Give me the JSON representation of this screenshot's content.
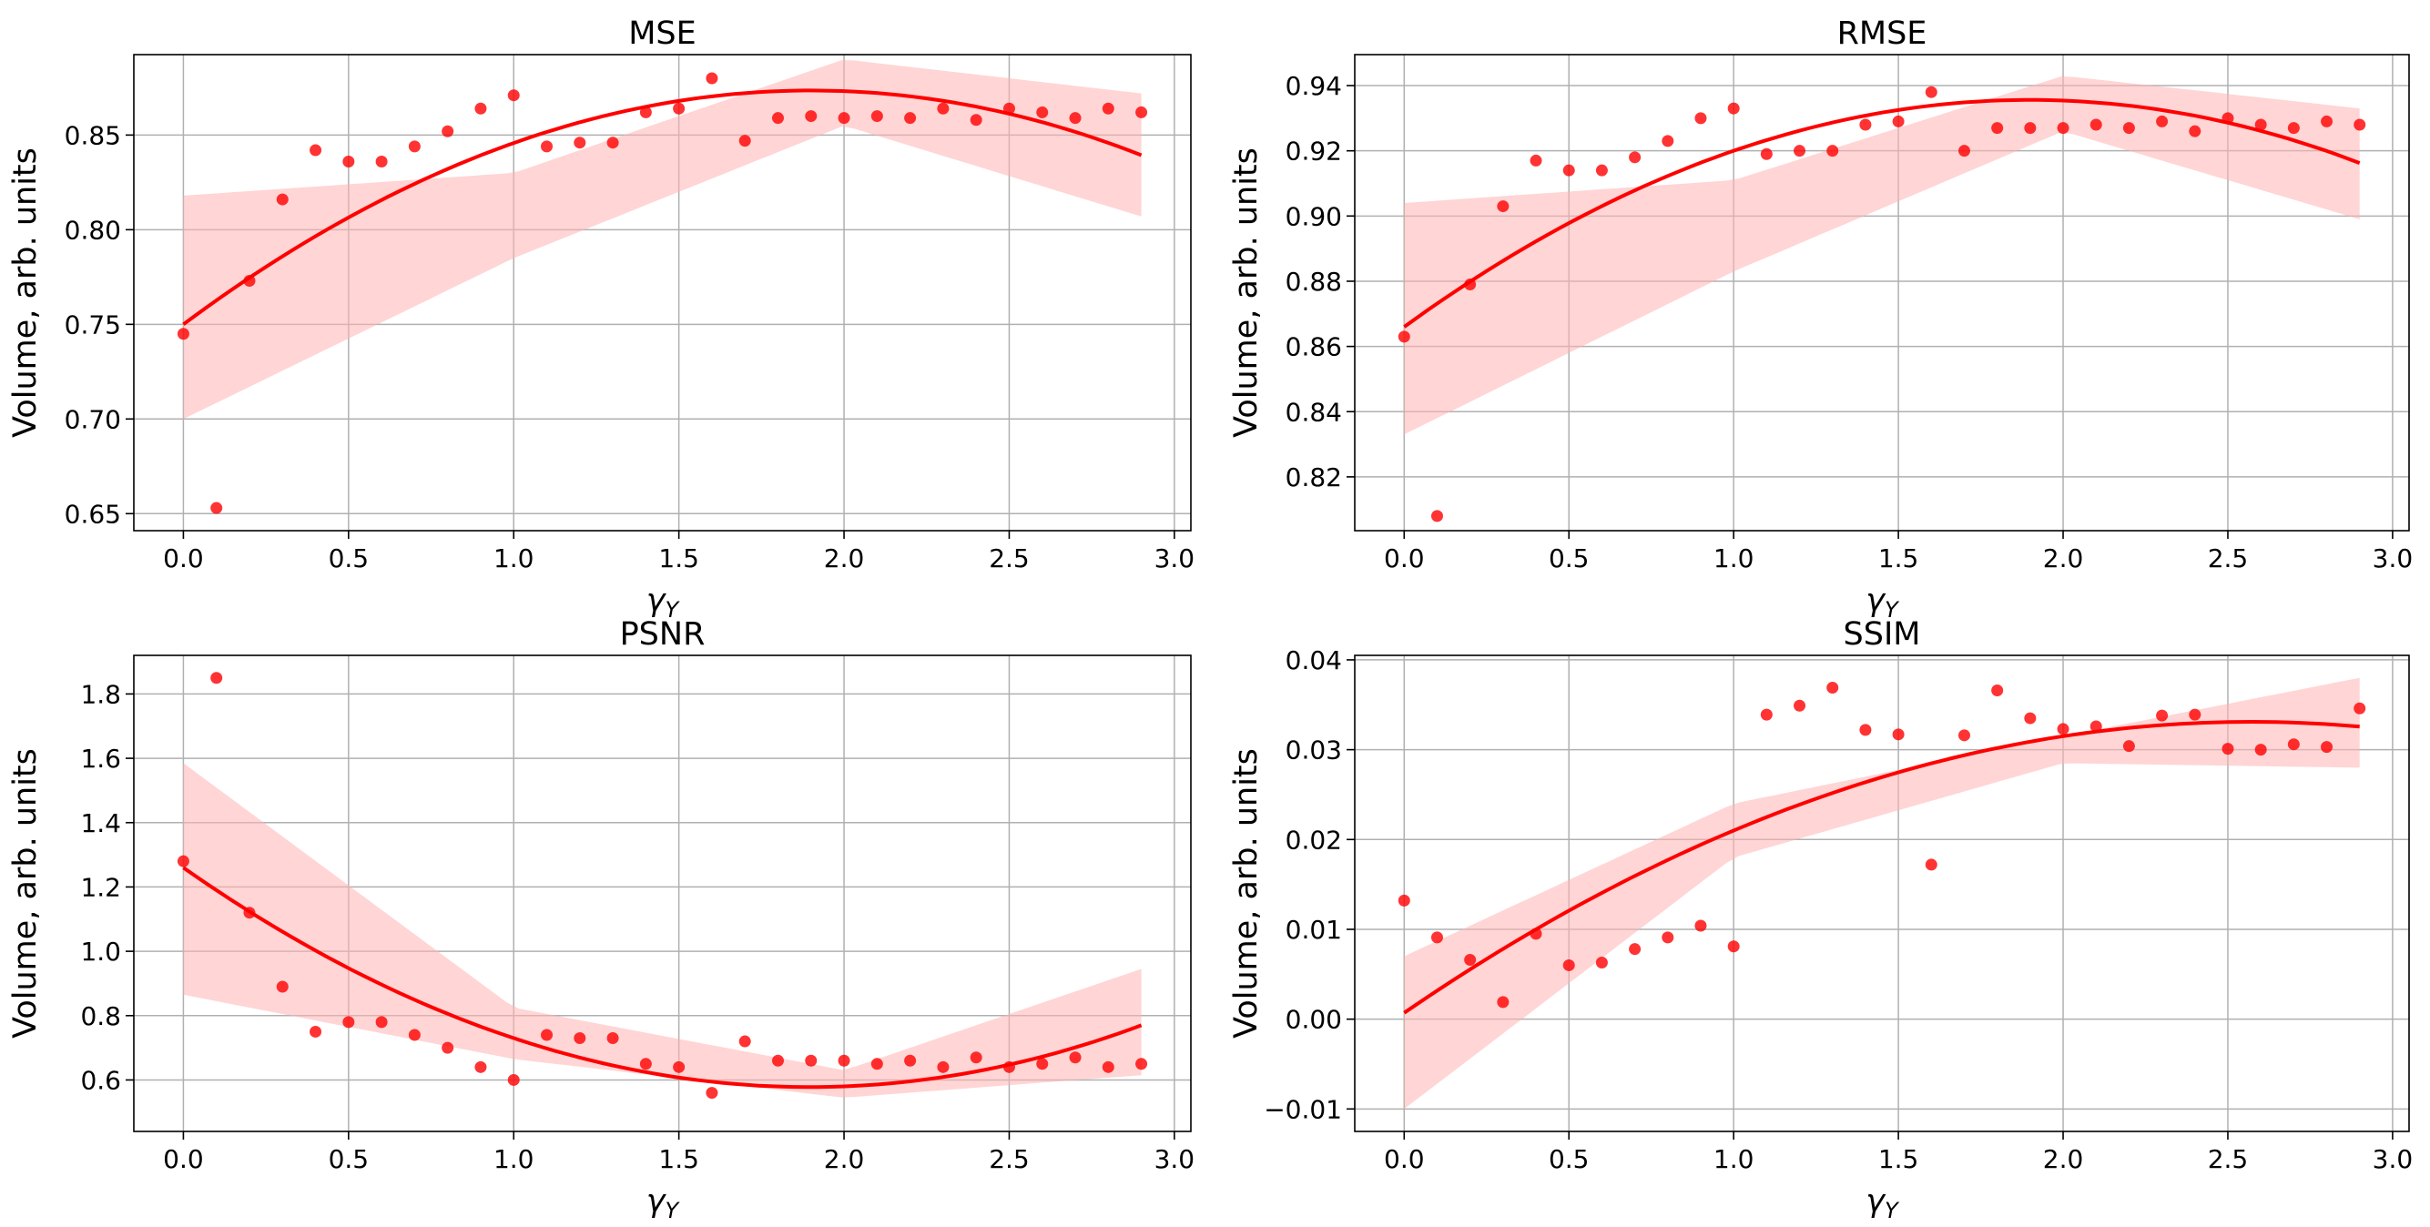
{
  "colors": {
    "accent": "#ff0000",
    "band": "#ffb3b3",
    "grid": "#b0b0b0"
  },
  "chart_data": [
    {
      "type": "scatter",
      "title": "MSE",
      "xlabel": "γ",
      "xlabel_sub": "Y",
      "ylabel": "Volume, arb. units",
      "xlim": [
        -0.15,
        3.05
      ],
      "ylim": [
        0.641,
        0.8925
      ],
      "xticks": [
        0.0,
        0.5,
        1.0,
        1.5,
        2.0,
        2.5,
        3.0
      ],
      "xtick_labels": [
        "0.0",
        "0.5",
        "1.0",
        "1.5",
        "2.0",
        "2.5",
        "3.0"
      ],
      "yticks": [
        0.65,
        0.7,
        0.75,
        0.8,
        0.85
      ],
      "ytick_labels": [
        "0.65",
        "0.70",
        "0.75",
        "0.80",
        "0.85"
      ],
      "x": [
        0.0,
        0.1,
        0.2,
        0.3,
        0.4,
        0.5,
        0.6,
        0.7,
        0.8,
        0.9,
        1.0,
        1.1,
        1.2,
        1.3,
        1.4,
        1.5,
        1.6,
        1.7,
        1.8,
        1.9,
        2.0,
        2.1,
        2.2,
        2.3,
        2.4,
        2.5,
        2.6,
        2.7,
        2.8,
        2.9
      ],
      "y": [
        0.745,
        0.653,
        0.773,
        0.816,
        0.842,
        0.836,
        0.836,
        0.844,
        0.852,
        0.864,
        0.871,
        0.844,
        0.846,
        0.846,
        0.862,
        0.864,
        0.88,
        0.847,
        0.859,
        0.86,
        0.859,
        0.86,
        0.859,
        0.864,
        0.858,
        0.864,
        0.862,
        0.859,
        0.864,
        0.862
      ],
      "fit": {
        "c0": 0.75,
        "c1": 0.13,
        "c2": -0.0342,
        "ci_lower": [
          0.7,
          0.785,
          0.855,
          0.807
        ],
        "ci_upper": [
          0.818,
          0.83,
          0.89,
          0.872
        ]
      }
    },
    {
      "type": "scatter",
      "title": "RMSE",
      "xlabel": "γ",
      "xlabel_sub": "Y",
      "ylabel": "Volume, arb. units",
      "xlim": [
        -0.15,
        3.05
      ],
      "ylim": [
        0.8035,
        0.9495
      ],
      "xticks": [
        0.0,
        0.5,
        1.0,
        1.5,
        2.0,
        2.5,
        3.0
      ],
      "xtick_labels": [
        "0.0",
        "0.5",
        "1.0",
        "1.5",
        "2.0",
        "2.5",
        "3.0"
      ],
      "yticks": [
        0.82,
        0.84,
        0.86,
        0.88,
        0.9,
        0.92,
        0.94
      ],
      "ytick_labels": [
        "0.82",
        "0.84",
        "0.86",
        "0.88",
        "0.90",
        "0.92",
        "0.94"
      ],
      "x": [
        0.0,
        0.1,
        0.2,
        0.3,
        0.4,
        0.5,
        0.6,
        0.7,
        0.8,
        0.9,
        1.0,
        1.1,
        1.2,
        1.3,
        1.4,
        1.5,
        1.6,
        1.7,
        1.8,
        1.9,
        2.0,
        2.1,
        2.2,
        2.3,
        2.4,
        2.5,
        2.6,
        2.7,
        2.8,
        2.9
      ],
      "y": [
        0.863,
        0.808,
        0.879,
        0.903,
        0.917,
        0.914,
        0.914,
        0.918,
        0.923,
        0.93,
        0.933,
        0.919,
        0.92,
        0.92,
        0.928,
        0.929,
        0.938,
        0.92,
        0.927,
        0.927,
        0.927,
        0.928,
        0.927,
        0.929,
        0.926,
        0.93,
        0.928,
        0.927,
        0.929,
        0.928
      ],
      "fit": {
        "c0": 0.866,
        "c1": 0.0733,
        "c2": -0.0193,
        "ci_lower": [
          0.833,
          0.883,
          0.926,
          0.899
        ],
        "ci_upper": [
          0.904,
          0.911,
          0.943,
          0.933
        ]
      }
    },
    {
      "type": "scatter",
      "title": "PSNR",
      "xlabel": "γ",
      "xlabel_sub": "Y",
      "ylabel": "Volume, arb. units",
      "xlim": [
        -0.15,
        3.05
      ],
      "ylim": [
        0.44,
        1.92
      ],
      "xticks": [
        0.0,
        0.5,
        1.0,
        1.5,
        2.0,
        2.5,
        3.0
      ],
      "xtick_labels": [
        "0.0",
        "0.5",
        "1.0",
        "1.5",
        "2.0",
        "2.5",
        "3.0"
      ],
      "yticks": [
        0.6,
        0.8,
        1.0,
        1.2,
        1.4,
        1.6,
        1.8
      ],
      "ytick_labels": [
        "0.6",
        "0.8",
        "1.0",
        "1.2",
        "1.4",
        "1.6",
        "1.8"
      ],
      "x": [
        0.0,
        0.1,
        0.2,
        0.3,
        0.4,
        0.5,
        0.6,
        0.7,
        0.8,
        0.9,
        1.0,
        1.1,
        1.2,
        1.3,
        1.4,
        1.5,
        1.6,
        1.7,
        1.8,
        1.9,
        2.0,
        2.1,
        2.2,
        2.3,
        2.4,
        2.5,
        2.6,
        2.7,
        2.8,
        2.9
      ],
      "y": [
        1.28,
        1.85,
        1.12,
        0.89,
        0.75,
        0.78,
        0.78,
        0.74,
        0.7,
        0.64,
        0.6,
        0.74,
        0.73,
        0.73,
        0.65,
        0.64,
        0.56,
        0.72,
        0.66,
        0.66,
        0.66,
        0.65,
        0.66,
        0.64,
        0.67,
        0.64,
        0.65,
        0.67,
        0.64,
        0.65
      ],
      "fit": {
        "c0": 1.26,
        "c1": -0.72,
        "c2": 0.19,
        "ci_lower": [
          0.865,
          0.665,
          0.545,
          0.615
        ],
        "ci_upper": [
          1.585,
          0.825,
          0.63,
          0.945
        ]
      }
    },
    {
      "type": "scatter",
      "title": "SSIM",
      "xlabel": "γ",
      "xlabel_sub": "Y",
      "ylabel": "Volume, arb. units",
      "xlim": [
        -0.15,
        3.05
      ],
      "ylim": [
        -0.0125,
        0.0405
      ],
      "xticks": [
        0.0,
        0.5,
        1.0,
        1.5,
        2.0,
        2.5,
        3.0
      ],
      "xtick_labels": [
        "0.0",
        "0.5",
        "1.0",
        "1.5",
        "2.0",
        "2.5",
        "3.0"
      ],
      "yticks": [
        -0.01,
        0.0,
        0.01,
        0.02,
        0.03,
        0.04
      ],
      "ytick_labels": [
        "−0.01",
        "0.00",
        "0.01",
        "0.02",
        "0.03",
        "0.04"
      ],
      "x": [
        0.0,
        0.1,
        0.2,
        0.3,
        0.4,
        0.5,
        0.6,
        0.7,
        0.8,
        0.9,
        1.0,
        1.1,
        1.2,
        1.3,
        1.4,
        1.5,
        1.6,
        1.7,
        1.8,
        1.9,
        2.0,
        2.1,
        2.2,
        2.3,
        2.4,
        2.5,
        2.6,
        2.7,
        2.8,
        2.9
      ],
      "y": [
        0.0132,
        0.0091,
        0.0066,
        0.0019,
        0.0095,
        0.006,
        0.0063,
        0.0078,
        0.0091,
        0.0104,
        0.0081,
        0.0339,
        0.0349,
        0.0369,
        0.0322,
        0.0317,
        0.0172,
        0.0316,
        0.0366,
        0.0335,
        0.0323,
        0.0326,
        0.0304,
        0.0338,
        0.0339,
        0.0301,
        0.03,
        0.0306,
        0.0303,
        0.0346
      ],
      "fit": {
        "c0": 0.0007,
        "c1": 0.0252,
        "c2": -0.0049,
        "ci_lower": [
          -0.01,
          0.018,
          0.0285,
          0.028
        ],
        "ci_upper": [
          0.007,
          0.024,
          0.0315,
          0.038
        ]
      }
    }
  ]
}
